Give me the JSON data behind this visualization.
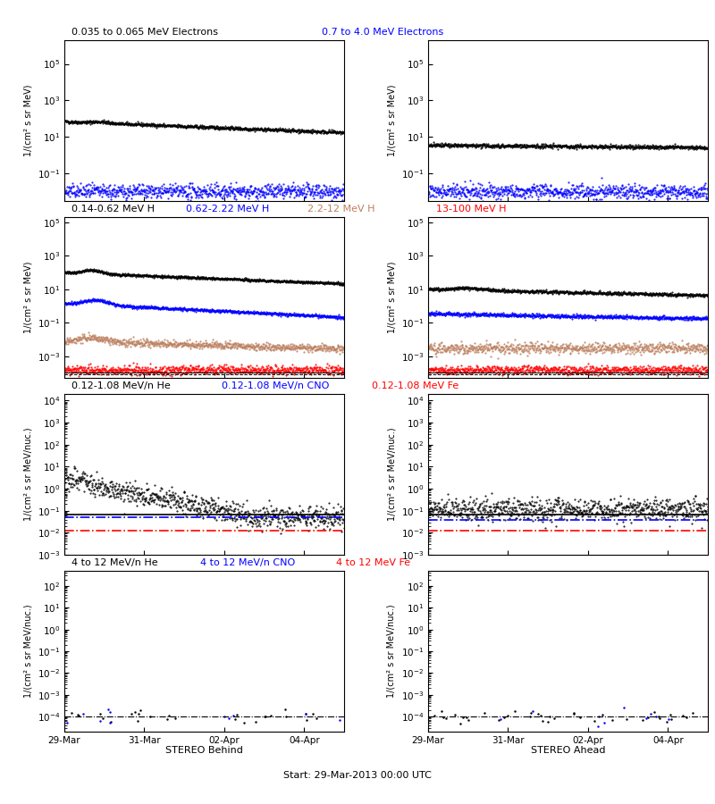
{
  "titles_row1": [
    "0.035 to 0.065 MeV Electrons",
    "0.7 to 4.0 MeV Electrons"
  ],
  "titles_row1_colors": [
    "black",
    "blue"
  ],
  "titles_row2": [
    "0.14-0.62 MeV H",
    "0.62-2.22 MeV H",
    "2.2-12 MeV H",
    "13-100 MeV H"
  ],
  "titles_row2_colors": [
    "black",
    "blue",
    "#bc8060",
    "red"
  ],
  "titles_row3": [
    "0.12-1.08 MeV/n He",
    "0.12-1.08 MeV/n CNO",
    "0.12-1.08 MeV Fe"
  ],
  "titles_row3_colors": [
    "black",
    "blue",
    "red"
  ],
  "titles_row4": [
    "4 to 12 MeV/n He",
    "4 to 12 MeV/n CNO",
    "4 to 12 MeV Fe"
  ],
  "titles_row4_colors": [
    "black",
    "blue",
    "red"
  ],
  "ylabel_mev": "1/(cm² s sr MeV)",
  "ylabel_nuc": "1/(cm² s sr MeV/nuc.)",
  "xlabel_left": "STEREO Behind",
  "xlabel_center": "Start: 29-Mar-2013 00:00 UTC",
  "xlabel_right": "STEREO Ahead",
  "xtick_labels": [
    "29-Mar",
    "31-Mar",
    "02-Apr",
    "04-Apr"
  ],
  "background_color": "#ffffff",
  "n_points": 800,
  "seed": 42
}
